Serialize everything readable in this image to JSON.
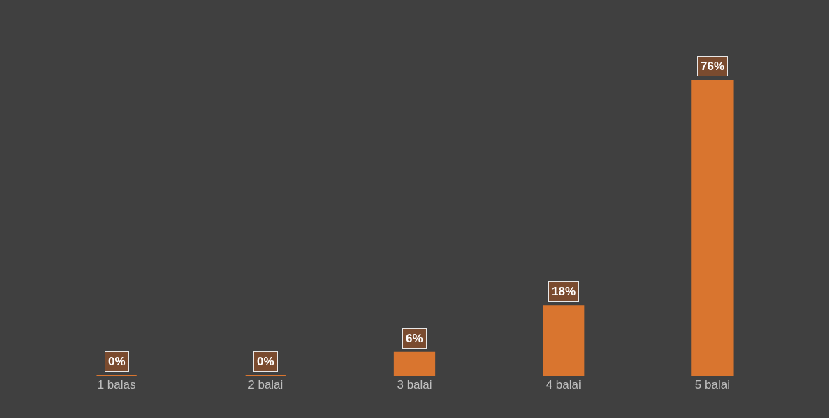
{
  "chart_data": {
    "type": "bar",
    "categories": [
      "1 balas",
      "2 balai",
      "3 balai",
      "4 balai",
      "5 balai"
    ],
    "values": [
      0,
      0,
      6,
      18,
      76
    ],
    "value_labels": [
      "0%",
      "0%",
      "6%",
      "18%",
      "76%"
    ],
    "color": "#d9752f"
  }
}
